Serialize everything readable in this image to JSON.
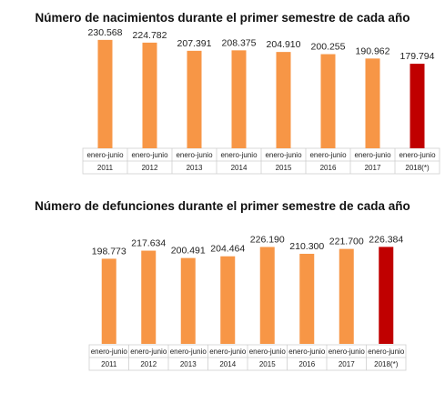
{
  "chart_data": [
    {
      "type": "bar",
      "title": "Número de nacimientos durante el primer semestre de cada año",
      "period_label": "enero-junio",
      "categories": [
        "2011",
        "2012",
        "2013",
        "2014",
        "2015",
        "2016",
        "2017",
        "2018(*)"
      ],
      "values": [
        230568,
        224782,
        207391,
        208375,
        204910,
        200255,
        190962,
        179794
      ],
      "value_labels": [
        "230.568",
        "224.782",
        "207.391",
        "208.375",
        "204.910",
        "200.255",
        "190.962",
        "179.794"
      ],
      "colors": [
        "#f79646",
        "#f79646",
        "#f79646",
        "#f79646",
        "#f79646",
        "#f79646",
        "#f79646",
        "#c00000"
      ],
      "axis_range": [
        0,
        240000
      ]
    },
    {
      "type": "bar",
      "title": "Número de defunciones durante el primer semestre de cada año",
      "period_label": "enero-junio",
      "categories": [
        "2011",
        "2012",
        "2013",
        "2014",
        "2015",
        "2016",
        "2017",
        "2018(*)"
      ],
      "values": [
        198773,
        217634,
        200491,
        204464,
        226190,
        210300,
        221700,
        226384
      ],
      "value_labels": [
        "198.773",
        "217.634",
        "200.491",
        "204.464",
        "226.190",
        "210.300",
        "221.700",
        "226.384"
      ],
      "colors": [
        "#f79646",
        "#f79646",
        "#f79646",
        "#f79646",
        "#f79646",
        "#f79646",
        "#f79646",
        "#c00000"
      ],
      "axis_range": [
        0,
        240000
      ]
    }
  ]
}
